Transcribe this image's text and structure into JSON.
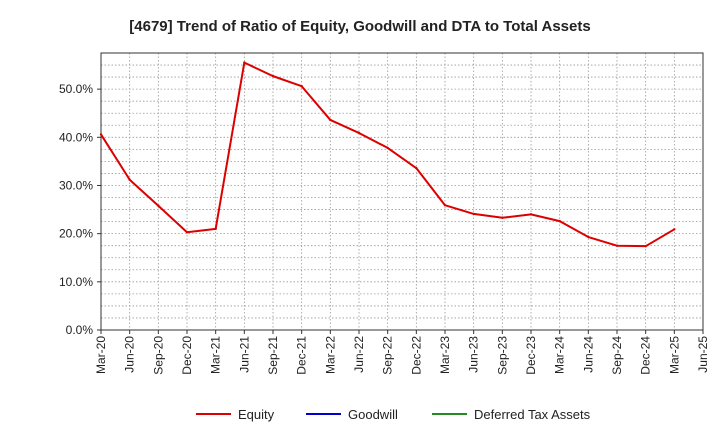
{
  "chart_data": {
    "type": "line",
    "title": "[4679]  Trend of Ratio of Equity, Goodwill and DTA to Total Assets",
    "xlabel": "",
    "ylabel": "",
    "ylim": [
      0,
      57.5
    ],
    "y_ticks": [
      0,
      10,
      20,
      30,
      40,
      50
    ],
    "y_tick_labels": [
      "0.0%",
      "10.0%",
      "20.0%",
      "30.0%",
      "40.0%",
      "50.0%"
    ],
    "x_tick_labels": [
      "Mar-20",
      "Jun-20",
      "Sep-20",
      "Dec-20",
      "Mar-21",
      "Jun-21",
      "Sep-21",
      "Dec-21",
      "Mar-22",
      "Jun-22",
      "Sep-22",
      "Dec-22",
      "Mar-23",
      "Jun-23",
      "Sep-23",
      "Dec-23",
      "Mar-24",
      "Jun-24",
      "Sep-24",
      "Dec-24",
      "Mar-25",
      "Jun-25"
    ],
    "grid": true,
    "legend_position": "bottom",
    "series": [
      {
        "name": "Equity",
        "color": "#dd0000",
        "values": [
          40.6,
          31.2,
          25.8,
          20.3,
          21.0,
          55.5,
          52.7,
          50.6,
          43.6,
          40.9,
          37.8,
          33.6,
          25.9,
          24.1,
          23.3,
          24.0,
          22.6,
          19.3,
          17.5,
          17.4,
          20.9,
          null
        ]
      },
      {
        "name": "Goodwill",
        "color": "#0000cc",
        "values": []
      },
      {
        "name": "Deferred Tax Assets",
        "color": "#228b22",
        "values": []
      }
    ]
  }
}
